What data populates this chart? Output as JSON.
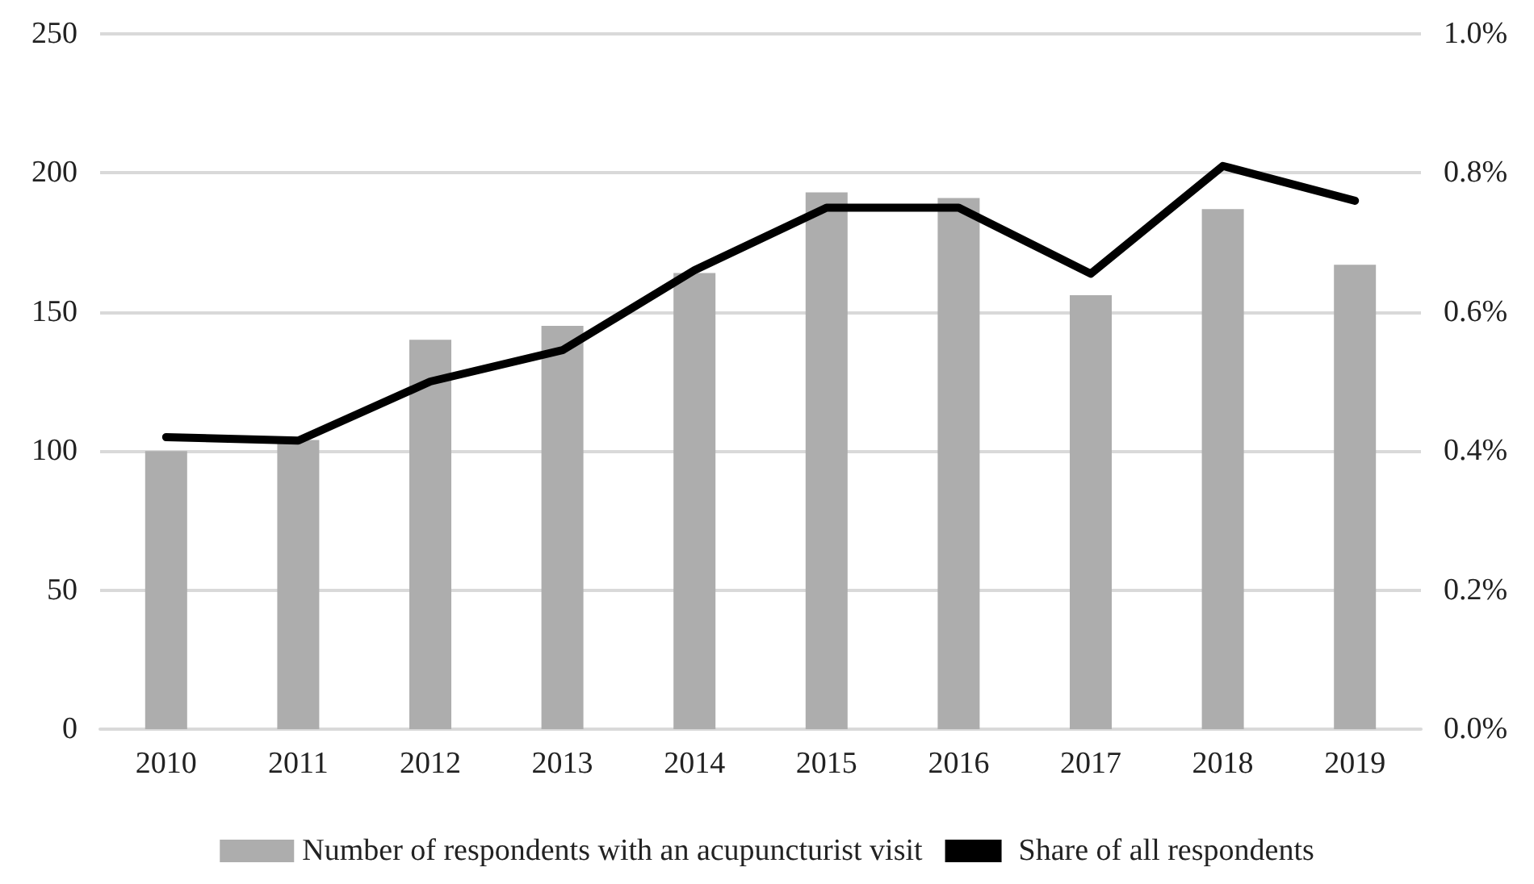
{
  "chart_data": {
    "type": "bar",
    "categories": [
      "2010",
      "2011",
      "2012",
      "2013",
      "2014",
      "2015",
      "2016",
      "2017",
      "2018",
      "2019"
    ],
    "series": [
      {
        "name": "Number of respondents with an acupuncturist visit",
        "color": "#adadad",
        "values": [
          100,
          104,
          140,
          145,
          164,
          193,
          191,
          156,
          187,
          167
        ]
      },
      {
        "name": "Share of all respondents",
        "type": "line",
        "axis": "y2",
        "color": "#000000",
        "values": [
          0.42,
          0.415,
          0.5,
          0.545,
          0.66,
          0.75,
          0.75,
          0.655,
          0.81,
          0.76
        ]
      }
    ],
    "ylim": [
      0,
      250
    ],
    "yticks": [
      0,
      50,
      100,
      150,
      200,
      250
    ],
    "y2lim": [
      0,
      1.0
    ],
    "y2ticks": [
      {
        "value": 0,
        "label": "0.0%"
      },
      {
        "value": 0.2,
        "label": "0.2%"
      },
      {
        "value": 0.4,
        "label": "0.4%"
      },
      {
        "value": 0.6,
        "label": "0.6%"
      },
      {
        "value": 0.8,
        "label": "0.8%"
      },
      {
        "value": 1.0,
        "label": "1.0%"
      }
    ],
    "grid": "y",
    "legend": "bottom",
    "marker": "none",
    "line_style": "solid"
  }
}
